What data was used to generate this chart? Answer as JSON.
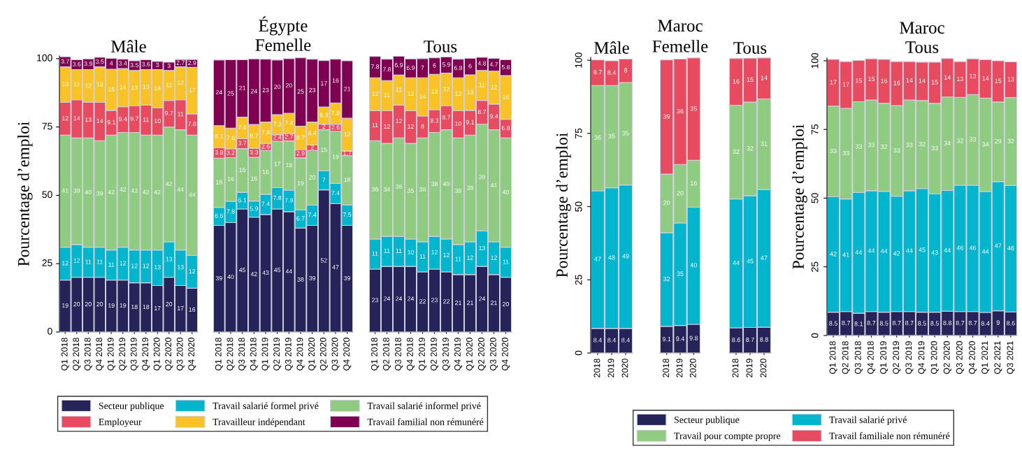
{
  "chart_data": [
    {
      "type": "bar",
      "stacked": true,
      "title": "Mâle",
      "ylabel": "Pourcentage d’emploi",
      "categories": [
        "Q1 2018",
        "Q2 2018",
        "Q3 2018",
        "Q4 2018",
        "Q1 2019",
        "Q2 2019",
        "Q3 2019",
        "Q4 2019",
        "Q1 2020",
        "Q2 2020",
        "Q3 2020",
        "Q4 2020"
      ],
      "ylim": [
        0,
        101
      ],
      "yticks": [
        0,
        25,
        50,
        75,
        100
      ],
      "data_labels": true,
      "legend": "bottom",
      "series": [
        {
          "name": "Secteur publique",
          "color": "#262358",
          "values": [
            19,
            20,
            20,
            20,
            19,
            19,
            18,
            18,
            17,
            20,
            17,
            16
          ]
        },
        {
          "name": "Travail salarié formel privé",
          "color": "#00b5cc",
          "values": [
            12,
            12,
            11,
            11,
            11,
            12,
            12,
            12,
            13,
            13,
            13,
            12
          ]
        },
        {
          "name": "Travail salarié informel privé",
          "color": "#90cb82",
          "values": [
            41,
            39,
            40,
            39,
            42,
            42,
            43,
            42,
            42,
            42,
            44,
            44
          ]
        },
        {
          "name": "Employeur",
          "color": "#e84a5f",
          "values": [
            12,
            14,
            13,
            14,
            9.1,
            9.4,
            9.7,
            11,
            10,
            9.7,
            11,
            7.8
          ]
        },
        {
          "name": "Travailleur indépendant",
          "color": "#f9c328",
          "values": [
            13,
            11,
            12,
            13,
            15,
            14,
            13,
            13,
            14,
            11,
            12,
            17
          ]
        },
        {
          "name": "Travail familial non rémunéré",
          "color": "#7f0050",
          "values": [
            3.7,
            3.6,
            3.9,
            3.5,
            4,
            3.4,
            3.5,
            3.6,
            3,
            3,
            2.7,
            2.9
          ]
        }
      ]
    },
    {
      "type": "bar",
      "stacked": true,
      "title": "Égypte",
      "subtitle": "Femelle",
      "categories": [
        "Q1 2018",
        "Q2 2018",
        "Q3 2018",
        "Q4 2018",
        "Q1 2019",
        "Q2 2019",
        "Q3 2019",
        "Q4 2019",
        "Q1 2020",
        "Q2 2020",
        "Q3 2020",
        "Q4 2020"
      ],
      "ylim": [
        0,
        101
      ],
      "tick_labels": "x",
      "data_labels": true,
      "series": [
        {
          "color": "#262358",
          "values": [
            39,
            40,
            45,
            42,
            43,
            45,
            44,
            38,
            39,
            52,
            47,
            39
          ]
        },
        {
          "color": "#00b5cc",
          "values": [
            6.6,
            7.8,
            6.1,
            5.9,
            7.4,
            7.8,
            7.9,
            6.7,
            7.4,
            7,
            7.4,
            7.5
          ]
        },
        {
          "color": "#90cb82",
          "values": [
            18,
            16,
            16,
            16,
            16,
            17,
            18,
            19,
            20,
            15,
            19,
            18
          ]
        },
        {
          "color": "#e84a5f",
          "values": [
            3.8,
            3.2,
            3.7,
            3.3,
            2.6,
            2.4,
            2.7,
            2.9,
            2,
            2,
            2.6,
            1.7
          ]
        },
        {
          "color": "#f9c328",
          "values": [
            8.1,
            7.6,
            7.8,
            8.7,
            7.8,
            7.3,
            7.4,
            8.7,
            8.4,
            6.3,
            7.8,
            12
          ]
        },
        {
          "color": "#7f0050",
          "values": [
            24,
            25,
            21,
            24,
            23,
            20,
            20,
            25,
            23,
            17,
            16,
            21
          ]
        }
      ]
    },
    {
      "type": "bar",
      "stacked": true,
      "title": "Tous",
      "categories": [
        "Q1 2018",
        "Q2 2018",
        "Q3 2018",
        "Q4 2018",
        "Q1 2019",
        "Q2 2019",
        "Q3 2019",
        "Q4 2019",
        "Q1 2020",
        "Q2 2020",
        "Q3 2020",
        "Q4 2020"
      ],
      "ylim": [
        0,
        101
      ],
      "tick_labels": "x",
      "data_labels": true,
      "series": [
        {
          "color": "#262358",
          "values": [
            23,
            24,
            24,
            24,
            22,
            23,
            22,
            21,
            21,
            24,
            21,
            20
          ]
        },
        {
          "color": "#00b5cc",
          "values": [
            11,
            11,
            11,
            10,
            11,
            12,
            12,
            11,
            12,
            13,
            12,
            11
          ]
        },
        {
          "color": "#90cb82",
          "values": [
            36,
            34,
            36,
            35,
            38,
            38,
            40,
            39,
            39,
            39,
            41,
            40
          ]
        },
        {
          "color": "#e84a5f",
          "values": [
            11,
            12,
            12,
            12,
            8,
            8.3,
            8.7,
            10,
            9.1,
            8.7,
            9.4,
            6.8
          ]
        },
        {
          "color": "#f9c328",
          "values": [
            12,
            11,
            11,
            12,
            14,
            13,
            12,
            12,
            13,
            11,
            12,
            16
          ]
        },
        {
          "color": "#7f0050",
          "values": [
            7.8,
            7.8,
            6.9,
            6.9,
            7,
            6,
            5.9,
            6.8,
            6,
            4.8,
            4.7,
            5.8
          ]
        }
      ]
    },
    {
      "type": "bar",
      "stacked": true,
      "title": "Mâle",
      "ylabel": "Pourcentage d’emploi",
      "categories": [
        "2018",
        "2019",
        "2020"
      ],
      "ylim": [
        0,
        101
      ],
      "yticks": [
        0,
        25,
        50,
        75,
        100
      ],
      "data_labels": true,
      "legend": "bottom",
      "series": [
        {
          "name": "Secteur publique",
          "color": "#262358",
          "values": [
            8.4,
            8.4,
            8.4
          ]
        },
        {
          "name": "Travail salarié privé",
          "color": "#00b5cc",
          "values": [
            47,
            48,
            49
          ]
        },
        {
          "name": "Travail pour compte propre",
          "color": "#90cb82",
          "values": [
            36,
            35,
            35
          ]
        },
        {
          "name": "Travail familiale non rémunéré",
          "color": "#e84a5f",
          "values": [
            8.7,
            8.4,
            8
          ]
        }
      ]
    },
    {
      "type": "bar",
      "stacked": true,
      "title": "Maroc",
      "subtitle": "Femelle",
      "categories": [
        "2018",
        "2019",
        "2020"
      ],
      "ylim": [
        0,
        101
      ],
      "tick_labels": "x",
      "data_labels": true,
      "series": [
        {
          "color": "#262358",
          "values": [
            9.1,
            9.4,
            9.8
          ]
        },
        {
          "color": "#00b5cc",
          "values": [
            32,
            35,
            40
          ]
        },
        {
          "color": "#90cb82",
          "values": [
            20,
            20,
            16
          ]
        },
        {
          "color": "#e84a5f",
          "values": [
            39,
            36,
            35
          ]
        }
      ]
    },
    {
      "type": "bar",
      "stacked": true,
      "title": "Tous",
      "categories": [
        "2018",
        "2019",
        "2020"
      ],
      "ylim": [
        0,
        101
      ],
      "tick_labels": "x",
      "data_labels": true,
      "series": [
        {
          "color": "#262358",
          "values": [
            8.6,
            8.7,
            8.8
          ]
        },
        {
          "color": "#00b5cc",
          "values": [
            44,
            45,
            47
          ]
        },
        {
          "color": "#90cb82",
          "values": [
            32,
            32,
            31
          ]
        },
        {
          "color": "#e84a5f",
          "values": [
            16,
            15,
            14
          ]
        }
      ]
    },
    {
      "type": "bar",
      "stacked": true,
      "title": "Maroc",
      "subtitle": "Tous",
      "ylabel": "Pourcentage d’emploi",
      "categories": [
        "Q1 2018",
        "Q2 2018",
        "Q3 2018",
        "Q4 2018",
        "Q1 2019",
        "Q2 2019",
        "Q3 2019",
        "Q4 2019",
        "Q1 2020",
        "Q2 2020",
        "Q3 2020",
        "Q4 2020",
        "Q1 2021",
        "Q2 2021",
        "Q3 2021"
      ],
      "ylim": [
        0,
        101
      ],
      "yticks": [
        0,
        25,
        50,
        75,
        100
      ],
      "data_labels": true,
      "series": [
        {
          "color": "#262358",
          "values": [
            8.5,
            8.7,
            8.1,
            8.7,
            8.5,
            8.7,
            8.7,
            8.5,
            8.5,
            8.8,
            8.7,
            8.7,
            8.4,
            9,
            8.6
          ]
        },
        {
          "color": "#00b5cc",
          "values": [
            42,
            41,
            44,
            44,
            44,
            42,
            44,
            45,
            43,
            44,
            46,
            46,
            44,
            47,
            46
          ]
        },
        {
          "color": "#90cb82",
          "values": [
            33,
            33,
            33,
            33,
            32,
            33,
            33,
            32,
            33,
            34,
            32,
            33,
            34,
            29,
            32
          ]
        },
        {
          "color": "#e84a5f",
          "values": [
            17,
            17,
            15,
            15,
            16,
            16,
            14,
            14,
            15,
            14,
            13,
            13,
            14,
            15,
            13
          ]
        }
      ]
    }
  ]
}
